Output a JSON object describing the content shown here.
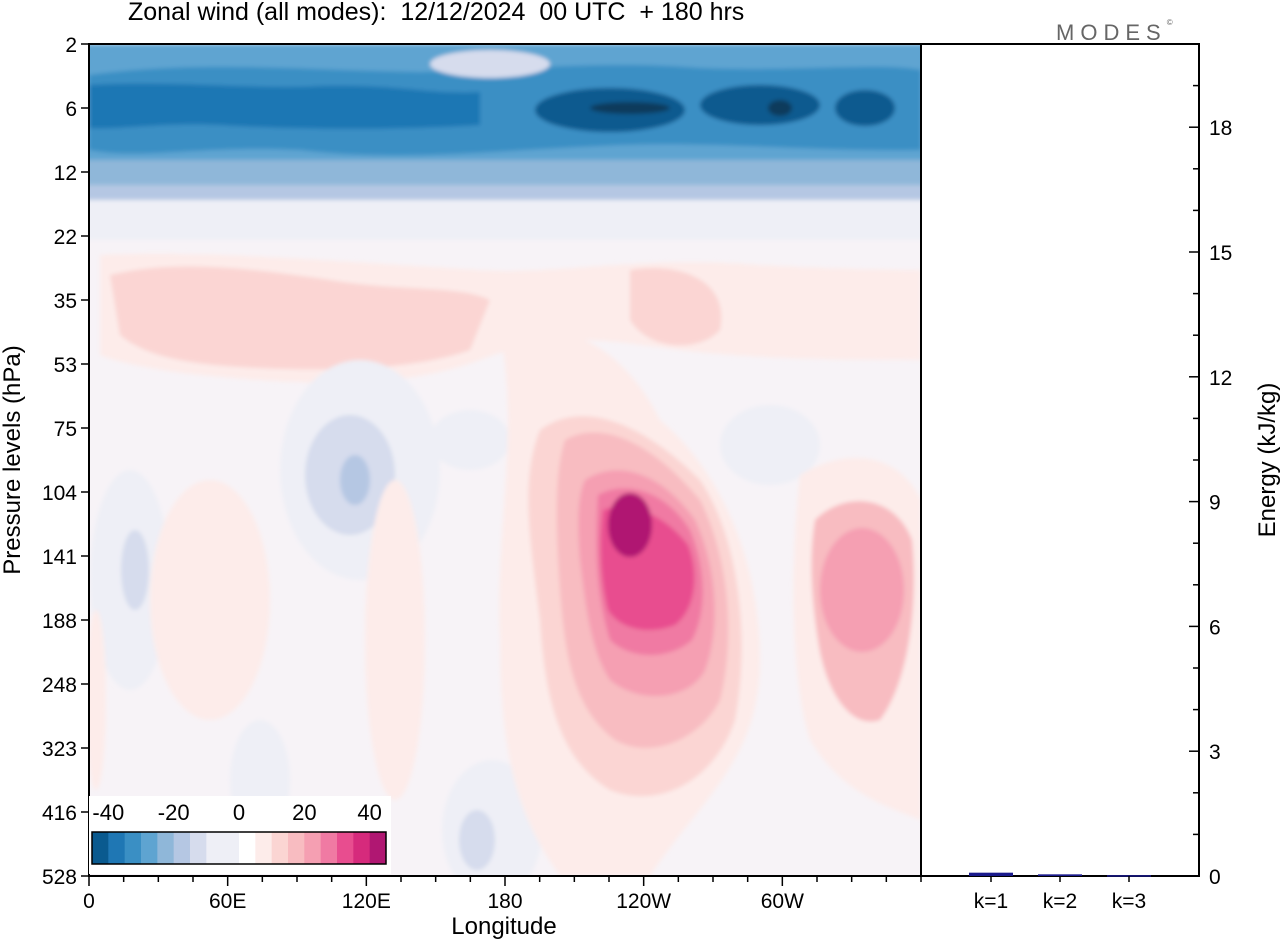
{
  "title": "Zonal wind (all modes):  12/12/2024  00 UTC  + 180 hrs",
  "brand": "MODES",
  "brand_mark": "©",
  "colors": {
    "neg_scale": [
      "#0b3a5c",
      "#0a5a8f",
      "#1f77b4",
      "#3a8fc4",
      "#5ea4d1",
      "#8fb7d9",
      "#b5c7e3",
      "#d6dced",
      "#eeeff6"
    ],
    "pos_scale": [
      "#fdecea",
      "#fbd5d3",
      "#f8bcc1",
      "#f59fb2",
      "#f07aa3",
      "#e84d8f",
      "#d62a7c",
      "#b01772",
      "#860c66",
      "#4d0a5e"
    ],
    "zero": "#ffffff",
    "bar": "#1a1a8c"
  },
  "chart_data": [
    {
      "type": "heatmap",
      "title": "Zonal wind (all modes):  12/12/2024  00 UTC  + 180 hrs",
      "xlabel": "Longitude",
      "ylabel": "Pressure levels (hPa)",
      "x_ticks": [
        "0",
        "60E",
        "120E",
        "180",
        "120W",
        "60W"
      ],
      "x_tick_values": [
        0,
        60,
        120,
        180,
        240,
        300
      ],
      "xlim": [
        0,
        360
      ],
      "y_ticks": [
        "2",
        "6",
        "12",
        "22",
        "35",
        "53",
        "75",
        "104",
        "141",
        "188",
        "248",
        "323",
        "416",
        "528"
      ],
      "y_order": "top-to-bottom",
      "colorbar": {
        "ticks": [
          "-40",
          "-20",
          "0",
          "20",
          "40"
        ],
        "tick_values": [
          -40,
          -20,
          0,
          20,
          40
        ],
        "range": [
          -45,
          45
        ],
        "step": 5
      },
      "features": [
        {
          "level": "6",
          "lon": 120,
          "value": -28
        },
        {
          "level": "6",
          "lon": 230,
          "value": -38
        },
        {
          "level": "6",
          "lon": 300,
          "value": -34
        },
        {
          "level": "141",
          "lon": 240,
          "value": 36
        },
        {
          "level": "141",
          "lon": 345,
          "value": 18
        },
        {
          "level": "104",
          "lon": 115,
          "value": -13
        },
        {
          "level": "35",
          "lon": 80,
          "value": 5
        }
      ]
    },
    {
      "type": "bar",
      "ylabel": "Energy (kJ/kg)",
      "categories": [
        "k=1",
        "k=2",
        "k=3"
      ],
      "values": [
        0.08,
        0.04,
        0.02
      ],
      "ylim": [
        0,
        20
      ],
      "y_ticks": [
        0,
        3,
        6,
        9,
        12,
        15,
        18
      ]
    }
  ]
}
